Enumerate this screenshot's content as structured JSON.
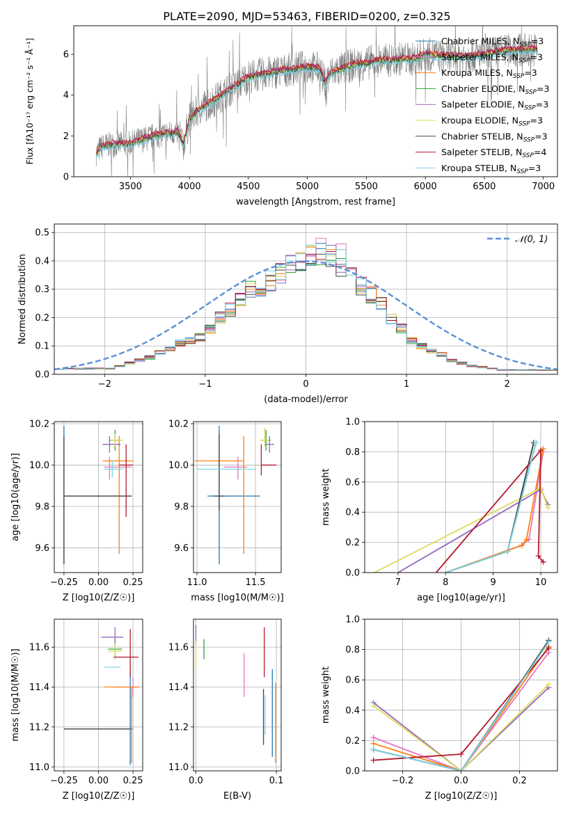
{
  "figure": {
    "title": "PLATE=2090, MJD=53463, FIBERID=0200, z=0.325"
  },
  "series": [
    {
      "name": "Chabrier MILES",
      "nssp": "3",
      "color": "#1f77b4"
    },
    {
      "name": "Salpeter MILES",
      "nssp": "3",
      "color": "#e377c2"
    },
    {
      "name": "Kroupa MILES",
      "nssp": "3",
      "color": "#ff7f0e"
    },
    {
      "name": "Chabrier ELODIE",
      "nssp": "3",
      "color": "#2ca02c"
    },
    {
      "name": "Salpeter ELODIE",
      "nssp": "3",
      "color": "#9467bd"
    },
    {
      "name": "Kroupa ELODIE",
      "nssp": "3",
      "color": "#dbdb5a"
    },
    {
      "name": "Chabrier STELIB",
      "nssp": "3",
      "color": "#444444"
    },
    {
      "name": "Salpeter STELIB",
      "nssp": "4",
      "color": "#b2182b"
    },
    {
      "name": "Kroupa STELIB",
      "nssp": "3",
      "color": "#7fd3e6"
    }
  ],
  "chart_data": [
    {
      "id": "spectrum",
      "type": "line",
      "xlabel": "wavelength [Angstrom, rest frame]",
      "xlim": [
        3020,
        7120
      ],
      "ylim": [
        0,
        7.4
      ],
      "xticks": [
        3500,
        4000,
        4500,
        5000,
        5500,
        6000,
        6500,
        7000
      ],
      "yticks": [
        0,
        2,
        4,
        6
      ],
      "data_color": "#808080",
      "continuum": {
        "x": [
          3210,
          3250,
          3300,
          3400,
          3500,
          3550,
          3650,
          3700,
          3800,
          3900,
          3950,
          4000,
          4100,
          4200,
          4300,
          4400,
          4500,
          4600,
          4700,
          4800,
          4900,
          5000,
          5100,
          5150,
          5200,
          5300,
          5400,
          5500,
          5600,
          5700,
          5800,
          5900,
          6000,
          6100,
          6200,
          6300,
          6400,
          6500,
          6600,
          6700,
          6800,
          6900
        ],
        "y": [
          1.15,
          1.45,
          1.55,
          1.6,
          1.6,
          1.75,
          1.9,
          2.0,
          2.1,
          2.2,
          1.6,
          2.8,
          3.4,
          3.7,
          4.1,
          4.5,
          4.9,
          5.0,
          5.1,
          5.2,
          5.3,
          5.4,
          5.3,
          4.6,
          5.1,
          5.3,
          5.5,
          5.55,
          5.7,
          5.7,
          5.8,
          5.75,
          6.0,
          5.95,
          5.9,
          5.9,
          5.95,
          6.0,
          6.1,
          6.2,
          6.2,
          6.25
        ]
      },
      "model_offsets": [
        0.0,
        0.06,
        0.03,
        -0.05,
        0.05,
        -0.02,
        -0.04,
        0.1,
        -0.15
      ]
    },
    {
      "id": "residuals",
      "type": "bar",
      "xlabel": "(data-model)/error",
      "ylabel": "Normed distribution",
      "xlim": [
        -2.5,
        2.5
      ],
      "ylim": [
        0,
        0.53
      ],
      "xticks": [
        -2,
        -1,
        0,
        1,
        2
      ],
      "yticks": [
        0.0,
        0.1,
        0.2,
        0.3,
        0.4,
        0.5
      ],
      "bin_width": 0.1,
      "reference": {
        "name": "N(0,1)",
        "label": "𝒩(0, 1)",
        "color": "#5a8fd6",
        "dashed": true
      },
      "grid": true,
      "legend": "top-right",
      "histogram_envelope": [
        0.02,
        0.03,
        0.04,
        0.05,
        0.06,
        0.08,
        0.09,
        0.11,
        0.12,
        0.13,
        0.16,
        0.2,
        0.23,
        0.27,
        0.3,
        0.31,
        0.33,
        0.36,
        0.38,
        0.41,
        0.42,
        0.43,
        0.41,
        0.38,
        0.36,
        0.31,
        0.28,
        0.25,
        0.2,
        0.16,
        0.12,
        0.1,
        0.08,
        0.07,
        0.05,
        0.04,
        0.03,
        0.025,
        0.02,
        0.015
      ],
      "highlight_bins": {
        "-0.2": 0.44,
        "0.0": 0.5,
        "0.1": 0.5,
        "0.3": 0.48,
        "0.4": 0.39
      }
    },
    {
      "id": "age_vs_Z",
      "type": "scatter",
      "xlabel": "Z [log10(Z/Z☉)]",
      "ylabel": "age [log10(age/yr)]",
      "xlim": [
        -0.32,
        0.32
      ],
      "ylim": [
        9.48,
        10.21
      ],
      "xticks": [
        -0.25,
        0.0,
        0.25
      ],
      "yticks": [
        9.6,
        9.8,
        10.0,
        10.2
      ],
      "points": [
        {
          "s": 0,
          "x": -0.25,
          "xerr": [
            0,
            0.49
          ],
          "y": 9.85,
          "yerr": [
            0.33,
            0.34
          ]
        },
        {
          "s": 1,
          "x": 0.08,
          "xerr": [
            0.04,
            0.16
          ],
          "y": 9.99,
          "yerr": [
            0.06,
            0.05
          ]
        },
        {
          "s": 2,
          "x": 0.15,
          "xerr": [
            0.12,
            0.1
          ],
          "y": 10.02,
          "yerr": [
            0.45,
            0.12
          ]
        },
        {
          "s": 3,
          "x": 0.12,
          "xerr": [
            0.04,
            0.04
          ],
          "y": 10.12,
          "yerr": [
            0.05,
            0.05
          ]
        },
        {
          "s": 4,
          "x": 0.08,
          "xerr": [
            0.05,
            0.08
          ],
          "y": 10.1,
          "yerr": [
            0.04,
            0.04
          ]
        },
        {
          "s": 5,
          "x": 0.12,
          "xerr": [
            0.03,
            0.06
          ],
          "y": 10.12,
          "yerr": [
            0.03,
            0.03
          ]
        },
        {
          "s": 6,
          "x": -0.25,
          "xerr": [
            0,
            0.49
          ],
          "y": 9.85,
          "yerr": [
            0.33,
            0.29
          ]
        },
        {
          "s": 7,
          "x": 0.2,
          "xerr": [
            0.05,
            0.05
          ],
          "y": 10.0,
          "yerr": [
            0.25,
            0.1
          ]
        },
        {
          "s": 8,
          "x": 0.1,
          "xerr": [
            0.06,
            0.08
          ],
          "y": 9.98,
          "yerr": [
            0.04,
            0.04
          ]
        }
      ]
    },
    {
      "id": "age_vs_mass",
      "type": "scatter",
      "xlabel": "mass [log10(M/M☉)]",
      "ylabel": "",
      "xlim": [
        10.97,
        11.72
      ],
      "ylim": [
        9.48,
        10.21
      ],
      "xticks": [
        11.0,
        11.5
      ],
      "yticks": [
        9.6,
        9.8,
        10.0,
        10.2
      ],
      "points": [
        {
          "s": 0,
          "x": 11.19,
          "xerr": [
            0.1,
            0.35
          ],
          "y": 9.85,
          "yerr": [
            0.33,
            0.34
          ]
        },
        {
          "s": 1,
          "x": 11.35,
          "xerr": [
            0.12,
            0.08
          ],
          "y": 9.99,
          "yerr": [
            0.06,
            0.05
          ]
        },
        {
          "s": 2,
          "x": 11.4,
          "xerr": [
            0.42,
            0.0
          ],
          "y": 10.02,
          "yerr": [
            0.45,
            0.12
          ]
        },
        {
          "s": 3,
          "x": 11.59,
          "xerr": [
            0.04,
            0.04
          ],
          "y": 10.12,
          "yerr": [
            0.05,
            0.05
          ]
        },
        {
          "s": 4,
          "x": 11.62,
          "xerr": [
            0.04,
            0.04
          ],
          "y": 10.1,
          "yerr": [
            0.04,
            0.04
          ]
        },
        {
          "s": 5,
          "x": 11.58,
          "xerr": [
            0.04,
            0.04
          ],
          "y": 10.12,
          "yerr": [
            0.03,
            0.06
          ]
        },
        {
          "s": 6,
          "x": 11.19,
          "xerr": [
            0.05,
            0.05
          ],
          "y": 9.85,
          "yerr": [
            0.07,
            0.3
          ]
        },
        {
          "s": 7,
          "x": 11.55,
          "xerr": [
            0.0,
            0.13
          ],
          "y": 10.0,
          "yerr": [
            0.05,
            0.1
          ]
        },
        {
          "s": 8,
          "x": 11.2,
          "xerr": [
            0.2,
            0.3
          ],
          "y": 9.98,
          "yerr": [
            0.0,
            0.0
          ]
        }
      ]
    },
    {
      "id": "weight_vs_age",
      "type": "line",
      "xlabel": "age [log10(age/yr)]",
      "ylabel": "mass weight",
      "xlim": [
        6.3,
        10.35
      ],
      "ylim": [
        0,
        1.0
      ],
      "xticks": [
        7,
        8,
        9,
        10
      ],
      "yticks": [
        0.0,
        0.2,
        0.4,
        0.6,
        0.8,
        1.0
      ],
      "series": [
        {
          "s": 0,
          "x": [
            8.0,
            9.3,
            9.9
          ],
          "y": [
            0.0,
            0.14,
            0.86
          ]
        },
        {
          "s": 1,
          "x": [
            8.0,
            9.6,
            9.75,
            10.05
          ],
          "y": [
            0.0,
            0.18,
            0.22,
            0.8
          ]
        },
        {
          "s": 2,
          "x": [
            8.0,
            9.6,
            9.7,
            10.05
          ],
          "y": [
            0.0,
            0.18,
            0.22,
            0.82
          ]
        },
        {
          "s": 3,
          "x": [
            8.0,
            9.3,
            9.85
          ],
          "y": [
            0.0,
            0.14,
            0.86
          ]
        },
        {
          "s": 4,
          "x": [
            7.0,
            10.0,
            10.15
          ],
          "y": [
            0.0,
            0.55,
            0.45
          ]
        },
        {
          "s": 5,
          "x": [
            6.5,
            10.0,
            10.15
          ],
          "y": [
            0.0,
            0.56,
            0.43
          ]
        },
        {
          "s": 6,
          "x": [
            8.0,
            9.3,
            9.85
          ],
          "y": [
            0.0,
            0.14,
            0.86
          ]
        },
        {
          "s": 7,
          "x": [
            7.8,
            10.0,
            9.95,
            10.05
          ],
          "y": [
            0.0,
            0.81,
            0.11,
            0.07
          ]
        },
        {
          "s": 8,
          "x": [
            8.0,
            9.3,
            9.9
          ],
          "y": [
            0.0,
            0.14,
            0.86
          ]
        }
      ]
    },
    {
      "id": "mass_vs_Z",
      "type": "scatter",
      "xlabel": "Z [log10(Z/Z☉)]",
      "ylabel": "mass [log10(M/M☉)]",
      "xlim": [
        -0.32,
        0.32
      ],
      "ylim": [
        10.98,
        11.74
      ],
      "xticks": [
        -0.25,
        0.0,
        0.25
      ],
      "yticks": [
        11.0,
        11.2,
        11.4,
        11.6
      ],
      "points": [
        {
          "s": 0,
          "x": 0.23,
          "xerr": [
            0.48,
            0.02
          ],
          "y": 11.19,
          "yerr": [
            0.18,
            0.3
          ]
        },
        {
          "s": 1,
          "x": 0.25,
          "xerr": [
            0.12,
            0.05
          ],
          "y": 11.4,
          "yerr": [
            0.05,
            0.05
          ]
        },
        {
          "s": 2,
          "x": 0.24,
          "xerr": [
            0.2,
            0.05
          ],
          "y": 11.4,
          "yerr": [
            0.38,
            0.0
          ]
        },
        {
          "s": 3,
          "x": 0.12,
          "xerr": [
            0.05,
            0.05
          ],
          "y": 11.59,
          "yerr": [
            0.05,
            0.05
          ]
        },
        {
          "s": 4,
          "x": 0.12,
          "xerr": [
            0.1,
            0.06
          ],
          "y": 11.65,
          "yerr": [
            0.05,
            0.05
          ]
        },
        {
          "s": 5,
          "x": 0.12,
          "xerr": [
            0.05,
            0.05
          ],
          "y": 11.58,
          "yerr": [
            0.04,
            0.04
          ]
        },
        {
          "s": 6,
          "x": -0.25,
          "xerr": [
            0,
            0.48
          ],
          "y": 11.19,
          "yerr": [
            0,
            0
          ]
        },
        {
          "s": 7,
          "x": 0.23,
          "xerr": [
            0.12,
            0.06
          ],
          "y": 11.55,
          "yerr": [
            0.1,
            0.14
          ]
        },
        {
          "s": 8,
          "x": 0.1,
          "xerr": [
            0.06,
            0.06
          ],
          "y": 11.5,
          "yerr": [
            0,
            0
          ]
        }
      ]
    },
    {
      "id": "mass_vs_ebv",
      "type": "scatter",
      "xlabel": "E(B-V)",
      "ylabel": "",
      "xlim": [
        -0.003,
        0.106
      ],
      "ylim": [
        10.98,
        11.74
      ],
      "xticks": [
        0.0,
        0.1
      ],
      "yticks": [
        11.0,
        11.2,
        11.4,
        11.6
      ],
      "points": [
        {
          "s": 0,
          "x": 0.095,
          "xerr": [
            0,
            0
          ],
          "y": 11.25,
          "yerr": [
            0.2,
            0.24
          ]
        },
        {
          "s": 1,
          "x": 0.06,
          "xerr": [
            0,
            0
          ],
          "y": 11.46,
          "yerr": [
            0.11,
            0.11
          ]
        },
        {
          "s": 2,
          "x": 0.099,
          "xerr": [
            0,
            0
          ],
          "y": 11.26,
          "yerr": [
            0.24,
            0.16
          ]
        },
        {
          "s": 3,
          "x": 0.01,
          "xerr": [
            0,
            0
          ],
          "y": 11.59,
          "yerr": [
            0.05,
            0.05
          ]
        },
        {
          "s": 4,
          "x": 0.0,
          "xerr": [
            0,
            0
          ],
          "y": 11.66,
          "yerr": [
            0.05,
            0.05
          ]
        },
        {
          "s": 5,
          "x": 0.0,
          "xerr": [
            0,
            0
          ],
          "y": 11.56,
          "yerr": [
            0.07,
            0.07
          ]
        },
        {
          "s": 6,
          "x": 0.084,
          "xerr": [
            0,
            0
          ],
          "y": 11.25,
          "yerr": [
            0.14,
            0.14
          ]
        },
        {
          "s": 7,
          "x": 0.085,
          "xerr": [
            0,
            0
          ],
          "y": 11.6,
          "yerr": [
            0.15,
            0.1
          ]
        },
        {
          "s": 8,
          "x": 0.086,
          "xerr": [
            0,
            0
          ],
          "y": 11.26,
          "yerr": [
            0.1,
            0.1
          ]
        }
      ]
    },
    {
      "id": "weight_vs_Z",
      "type": "line",
      "xlabel": "Z [log10(Z/Z☉)]",
      "ylabel": "mass weight",
      "xlim": [
        -0.33,
        0.33
      ],
      "ylim": [
        0,
        1.0
      ],
      "xticks": [
        -0.2,
        0.0,
        0.2
      ],
      "yticks": [
        0.0,
        0.2,
        0.4,
        0.6,
        0.8,
        1.0
      ],
      "series": [
        {
          "s": 0,
          "x": [
            -0.3,
            0.0,
            0.3
          ],
          "y": [
            0.14,
            0.0,
            0.86
          ]
        },
        {
          "s": 1,
          "x": [
            -0.3,
            0.0,
            0.3
          ],
          "y": [
            0.22,
            0.0,
            0.78
          ]
        },
        {
          "s": 2,
          "x": [
            -0.3,
            0.0,
            0.3
          ],
          "y": [
            0.18,
            0.0,
            0.82
          ]
        },
        {
          "s": 3,
          "x": [
            -0.3,
            0.0,
            0.3
          ],
          "y": [
            0.14,
            0.0,
            0.86
          ]
        },
        {
          "s": 4,
          "x": [
            -0.3,
            0.0,
            0.3
          ],
          "y": [
            0.45,
            0.0,
            0.55
          ]
        },
        {
          "s": 5,
          "x": [
            -0.3,
            0.0,
            0.3
          ],
          "y": [
            0.43,
            0.0,
            0.57
          ]
        },
        {
          "s": 6,
          "x": [
            -0.3,
            0.0,
            0.3
          ],
          "y": [
            0.14,
            0.0,
            0.86
          ]
        },
        {
          "s": 7,
          "x": [
            -0.3,
            0.0,
            0.3
          ],
          "y": [
            0.07,
            0.11,
            0.81
          ]
        },
        {
          "s": 8,
          "x": [
            -0.3,
            0.0,
            0.3
          ],
          "y": [
            0.14,
            0.0,
            0.85
          ]
        }
      ]
    }
  ]
}
